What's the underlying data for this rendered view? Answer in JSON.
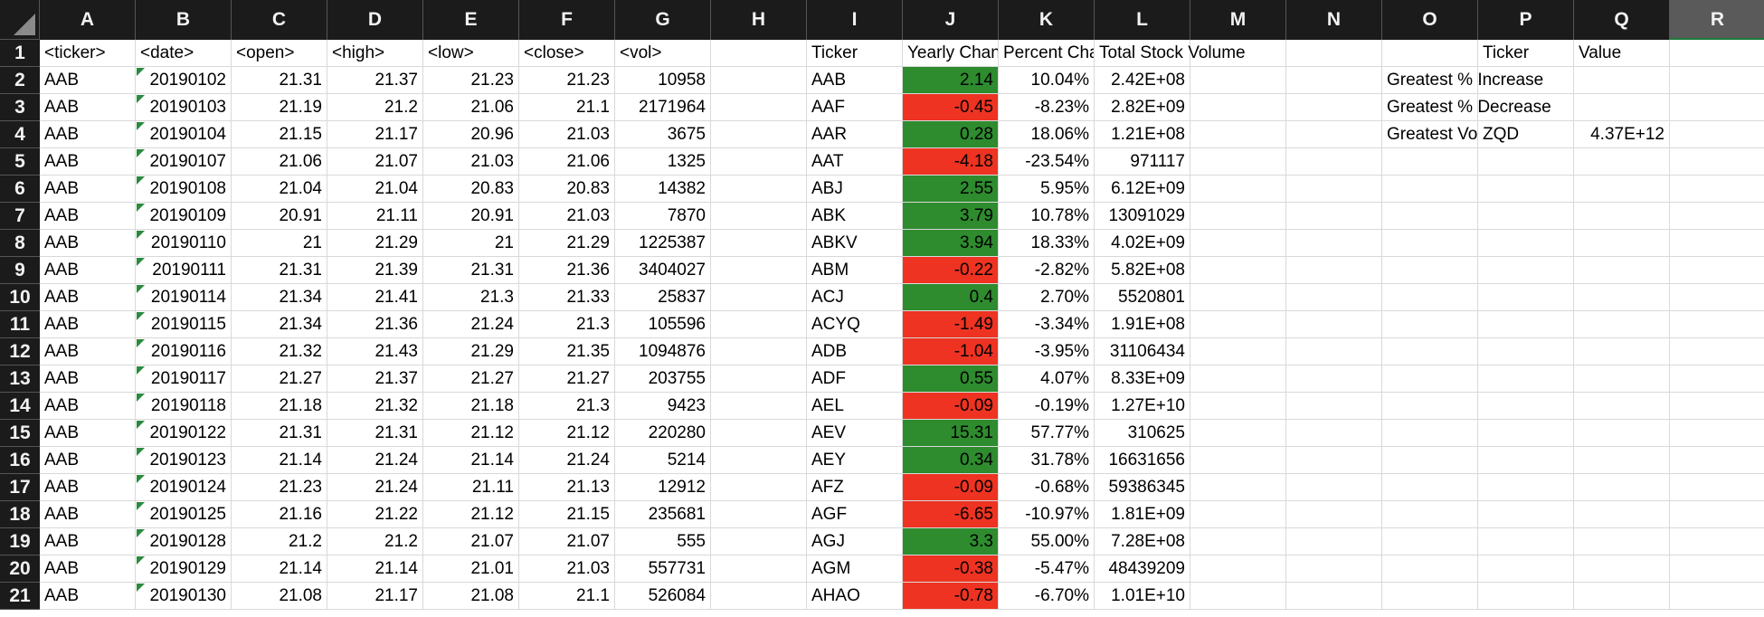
{
  "columns": [
    "A",
    "B",
    "C",
    "D",
    "E",
    "F",
    "G",
    "H",
    "I",
    "J",
    "K",
    "L",
    "M",
    "N",
    "O",
    "P",
    "Q",
    "R"
  ],
  "selected_column": "R",
  "row_numbers": [
    "1",
    "2",
    "3",
    "4",
    "5",
    "6",
    "7",
    "8",
    "9",
    "10",
    "11",
    "12",
    "13",
    "14",
    "15",
    "16",
    "17",
    "18",
    "19",
    "20",
    "21"
  ],
  "header_row": {
    "A": "<ticker>",
    "B": "<date>",
    "C": "<open>",
    "D": "<high>",
    "E": "<low>",
    "F": "<close>",
    "G": "<vol>",
    "I": "Ticker",
    "J": "Yearly Change",
    "K": "Percent Change",
    "L": "Total Stock Volume",
    "P": "Ticker",
    "Q": "Value"
  },
  "stock_rows": [
    {
      "ticker": "AAB",
      "date": "20190102",
      "open": "21.31",
      "high": "21.37",
      "low": "21.23",
      "close": "21.23",
      "vol": "10958"
    },
    {
      "ticker": "AAB",
      "date": "20190103",
      "open": "21.19",
      "high": "21.2",
      "low": "21.06",
      "close": "21.1",
      "vol": "2171964"
    },
    {
      "ticker": "AAB",
      "date": "20190104",
      "open": "21.15",
      "high": "21.17",
      "low": "20.96",
      "close": "21.03",
      "vol": "3675"
    },
    {
      "ticker": "AAB",
      "date": "20190107",
      "open": "21.06",
      "high": "21.07",
      "low": "21.03",
      "close": "21.06",
      "vol": "1325"
    },
    {
      "ticker": "AAB",
      "date": "20190108",
      "open": "21.04",
      "high": "21.04",
      "low": "20.83",
      "close": "20.83",
      "vol": "14382"
    },
    {
      "ticker": "AAB",
      "date": "20190109",
      "open": "20.91",
      "high": "21.11",
      "low": "20.91",
      "close": "21.03",
      "vol": "7870"
    },
    {
      "ticker": "AAB",
      "date": "20190110",
      "open": "21",
      "high": "21.29",
      "low": "21",
      "close": "21.29",
      "vol": "1225387"
    },
    {
      "ticker": "AAB",
      "date": "20190111",
      "open": "21.31",
      "high": "21.39",
      "low": "21.31",
      "close": "21.36",
      "vol": "3404027"
    },
    {
      "ticker": "AAB",
      "date": "20190114",
      "open": "21.34",
      "high": "21.41",
      "low": "21.3",
      "close": "21.33",
      "vol": "25837"
    },
    {
      "ticker": "AAB",
      "date": "20190115",
      "open": "21.34",
      "high": "21.36",
      "low": "21.24",
      "close": "21.3",
      "vol": "105596"
    },
    {
      "ticker": "AAB",
      "date": "20190116",
      "open": "21.32",
      "high": "21.43",
      "low": "21.29",
      "close": "21.35",
      "vol": "1094876"
    },
    {
      "ticker": "AAB",
      "date": "20190117",
      "open": "21.27",
      "high": "21.37",
      "low": "21.27",
      "close": "21.27",
      "vol": "203755"
    },
    {
      "ticker": "AAB",
      "date": "20190118",
      "open": "21.18",
      "high": "21.32",
      "low": "21.18",
      "close": "21.3",
      "vol": "9423"
    },
    {
      "ticker": "AAB",
      "date": "20190122",
      "open": "21.31",
      "high": "21.31",
      "low": "21.12",
      "close": "21.12",
      "vol": "220280"
    },
    {
      "ticker": "AAB",
      "date": "20190123",
      "open": "21.14",
      "high": "21.24",
      "low": "21.14",
      "close": "21.24",
      "vol": "5214"
    },
    {
      "ticker": "AAB",
      "date": "20190124",
      "open": "21.23",
      "high": "21.24",
      "low": "21.11",
      "close": "21.13",
      "vol": "12912"
    },
    {
      "ticker": "AAB",
      "date": "20190125",
      "open": "21.16",
      "high": "21.22",
      "low": "21.12",
      "close": "21.15",
      "vol": "235681"
    },
    {
      "ticker": "AAB",
      "date": "20190128",
      "open": "21.2",
      "high": "21.2",
      "low": "21.07",
      "close": "21.07",
      "vol": "555"
    },
    {
      "ticker": "AAB",
      "date": "20190129",
      "open": "21.14",
      "high": "21.14",
      "low": "21.01",
      "close": "21.03",
      "vol": "557731"
    },
    {
      "ticker": "AAB",
      "date": "20190130",
      "open": "21.08",
      "high": "21.17",
      "low": "21.08",
      "close": "21.1",
      "vol": "526084"
    }
  ],
  "summary_rows": [
    {
      "ticker": "AAB",
      "yearly_change": "2.14",
      "percent_change": "10.04%",
      "total_volume": "2.42E+08",
      "status": "positive"
    },
    {
      "ticker": "AAF",
      "yearly_change": "-0.45",
      "percent_change": "-8.23%",
      "total_volume": "2.82E+09",
      "status": "negative"
    },
    {
      "ticker": "AAR",
      "yearly_change": "0.28",
      "percent_change": "18.06%",
      "total_volume": "1.21E+08",
      "status": "positive"
    },
    {
      "ticker": "AAT",
      "yearly_change": "-4.18",
      "percent_change": "-23.54%",
      "total_volume": "971117",
      "status": "negative"
    },
    {
      "ticker": "ABJ",
      "yearly_change": "2.55",
      "percent_change": "5.95%",
      "total_volume": "6.12E+09",
      "status": "positive"
    },
    {
      "ticker": "ABK",
      "yearly_change": "3.79",
      "percent_change": "10.78%",
      "total_volume": "13091029",
      "status": "positive"
    },
    {
      "ticker": "ABKV",
      "yearly_change": "3.94",
      "percent_change": "18.33%",
      "total_volume": "4.02E+09",
      "status": "positive"
    },
    {
      "ticker": "ABM",
      "yearly_change": "-0.22",
      "percent_change": "-2.82%",
      "total_volume": "5.82E+08",
      "status": "negative"
    },
    {
      "ticker": "ACJ",
      "yearly_change": "0.4",
      "percent_change": "2.70%",
      "total_volume": "5520801",
      "status": "positive"
    },
    {
      "ticker": "ACYQ",
      "yearly_change": "-1.49",
      "percent_change": "-3.34%",
      "total_volume": "1.91E+08",
      "status": "negative"
    },
    {
      "ticker": "ADB",
      "yearly_change": "-1.04",
      "percent_change": "-3.95%",
      "total_volume": "31106434",
      "status": "negative"
    },
    {
      "ticker": "ADF",
      "yearly_change": "0.55",
      "percent_change": "4.07%",
      "total_volume": "8.33E+09",
      "status": "positive"
    },
    {
      "ticker": "AEL",
      "yearly_change": "-0.09",
      "percent_change": "-0.19%",
      "total_volume": "1.27E+10",
      "status": "negative"
    },
    {
      "ticker": "AEV",
      "yearly_change": "15.31",
      "percent_change": "57.77%",
      "total_volume": "310625",
      "status": "positive"
    },
    {
      "ticker": "AEY",
      "yearly_change": "0.34",
      "percent_change": "31.78%",
      "total_volume": "16631656",
      "status": "positive"
    },
    {
      "ticker": "AFZ",
      "yearly_change": "-0.09",
      "percent_change": "-0.68%",
      "total_volume": "59386345",
      "status": "negative"
    },
    {
      "ticker": "AGF",
      "yearly_change": "-6.65",
      "percent_change": "-10.97%",
      "total_volume": "1.81E+09",
      "status": "negative"
    },
    {
      "ticker": "AGJ",
      "yearly_change": "3.3",
      "percent_change": "55.00%",
      "total_volume": "7.28E+08",
      "status": "positive"
    },
    {
      "ticker": "AGM",
      "yearly_change": "-0.38",
      "percent_change": "-5.47%",
      "total_volume": "48439209",
      "status": "negative"
    },
    {
      "ticker": "AHAO",
      "yearly_change": "-0.78",
      "percent_change": "-6.70%",
      "total_volume": "1.01E+10",
      "status": "negative"
    }
  ],
  "greatest_table": [
    {
      "label": "Greatest % Increase",
      "ticker": "",
      "value": ""
    },
    {
      "label": "Greatest % Decrease",
      "ticker": "",
      "value": ""
    },
    {
      "label": "Greatest Volume",
      "ticker": "ZQD",
      "value": "4.37E+12"
    }
  ],
  "colors": {
    "header_bg": "#1b1b1b",
    "selected_header_bg": "#5a5a5a",
    "positive_fill": "#2e8b2e",
    "negative_fill": "#ee3322",
    "gridline": "#d9d9d9",
    "note_marker": "#2b8a3e"
  }
}
